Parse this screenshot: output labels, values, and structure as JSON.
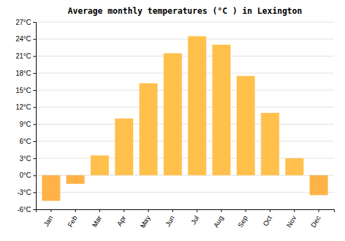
{
  "chart_data": {
    "type": "bar",
    "title": "Average monthly temperatures (°C ) in Lexington",
    "categories": [
      "Jan",
      "Feb",
      "Mar",
      "Apr",
      "May",
      "Jun",
      "Jul",
      "Aug",
      "Sep",
      "Oct",
      "Nov",
      "Dec"
    ],
    "values": [
      -4.5,
      -1.5,
      3.5,
      10.0,
      16.2,
      21.5,
      24.5,
      23.0,
      17.5,
      11.0,
      3.0,
      -3.5
    ],
    "colors": [
      "#FFB347",
      "#FFB347",
      "#FFC04C",
      "#FFC04C",
      "#FFC04C",
      "#FFC04C",
      "#FFC04C",
      "#FFC04C",
      "#FFC04C",
      "#FFC04C",
      "#FFC04C",
      "#FFB347"
    ],
    "ylim": [
      -6,
      27
    ],
    "yticks": [
      {
        "value": -6,
        "label": "-6°C"
      },
      {
        "value": -3,
        "label": "-3°C"
      },
      {
        "value": 0,
        "label": "0°C"
      },
      {
        "value": 3,
        "label": "3°C"
      },
      {
        "value": 6,
        "label": "6°C"
      },
      {
        "value": 9,
        "label": "9°C"
      },
      {
        "value": 12,
        "label": "12°C"
      },
      {
        "value": 15,
        "label": "15°C"
      },
      {
        "value": 18,
        "label": "18°C"
      },
      {
        "value": 21,
        "label": "21°C"
      },
      {
        "value": 24,
        "label": "24°C"
      },
      {
        "value": 27,
        "label": "27°C"
      }
    ],
    "grid": true
  }
}
